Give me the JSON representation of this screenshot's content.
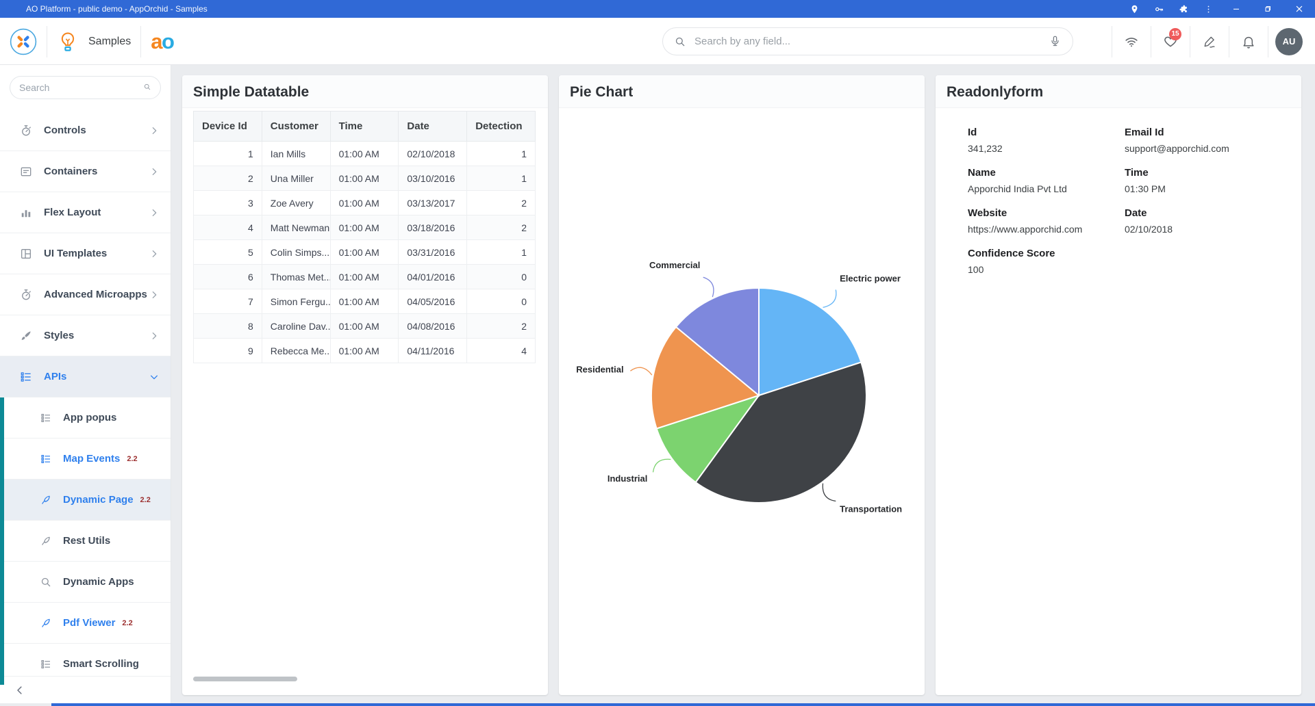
{
  "window": {
    "title": "AO Platform - public demo - AppOrchid - Samples"
  },
  "header": {
    "app_label": "Samples",
    "brand_a": "a",
    "brand_o": "o",
    "search": {
      "placeholder": "Search by any field..."
    },
    "notifications_badge": "15",
    "avatar_initials": "AU"
  },
  "sidebar": {
    "search_placeholder": "Search",
    "items": [
      {
        "label": "Controls",
        "icon": "stopwatch-icon",
        "chevron": "right"
      },
      {
        "label": "Containers",
        "icon": "card-icon",
        "chevron": "right"
      },
      {
        "label": "Flex Layout",
        "icon": "bar-chart-icon",
        "chevron": "right"
      },
      {
        "label": "UI Templates",
        "icon": "grid-icon",
        "chevron": "right"
      },
      {
        "label": "Advanced Microapps",
        "icon": "stopwatch-icon",
        "chevron": "right"
      },
      {
        "label": "Styles",
        "icon": "brush-icon",
        "chevron": "right"
      },
      {
        "label": "APIs",
        "icon": "list-icon",
        "chevron": "down",
        "active": true
      }
    ],
    "api_subitems": [
      {
        "label": "App popus",
        "icon": "list-icon"
      },
      {
        "label": "Map Events",
        "icon": "list-icon",
        "version": "2.2",
        "highlighted": true
      },
      {
        "label": "Dynamic Page",
        "icon": "quill-icon",
        "version": "2.2",
        "highlighted": true,
        "selected": true
      },
      {
        "label": "Rest Utils",
        "icon": "quill-icon"
      },
      {
        "label": "Dynamic Apps",
        "icon": "search-icon"
      },
      {
        "label": "Pdf Viewer",
        "icon": "quill-icon",
        "version": "2.2",
        "highlighted": true
      },
      {
        "label": "Smart Scrolling",
        "icon": "list-icon"
      }
    ]
  },
  "datatable": {
    "title": "Simple Datatable",
    "columns": [
      "Device Id",
      "Customer",
      "Time",
      "Date",
      "Detection"
    ],
    "rows": [
      [
        "1",
        "Ian Mills",
        "01:00 AM",
        "02/10/2018",
        "1"
      ],
      [
        "2",
        "Una Miller",
        "01:00 AM",
        "03/10/2016",
        "1"
      ],
      [
        "3",
        "Zoe Avery",
        "01:00 AM",
        "03/13/2017",
        "2"
      ],
      [
        "4",
        "Matt Newman",
        "01:00 AM",
        "03/18/2016",
        "2"
      ],
      [
        "5",
        "Colin Simps...",
        "01:00 AM",
        "03/31/2016",
        "1"
      ],
      [
        "6",
        "Thomas Met...",
        "01:00 AM",
        "04/01/2016",
        "0"
      ],
      [
        "7",
        "Simon Fergu...",
        "01:00 AM",
        "04/05/2016",
        "0"
      ],
      [
        "8",
        "Caroline Dav...",
        "01:00 AM",
        "04/08/2016",
        "2"
      ],
      [
        "9",
        "Rebecca Me...",
        "01:00 AM",
        "04/11/2016",
        "4"
      ]
    ]
  },
  "chart_data": {
    "type": "pie",
    "title": "Pie Chart",
    "labels": [
      "Electric power",
      "Transportation",
      "Industrial",
      "Residential",
      "Commercial"
    ],
    "values": [
      20,
      40,
      10,
      16,
      14
    ],
    "unit": "percent",
    "colors": [
      "#64b5f6",
      "#3f4246",
      "#7cd36f",
      "#ef944f",
      "#7e88dd"
    ],
    "start_angle_deg": 0,
    "direction": "clockwise",
    "legend": "none",
    "labels_outside": true
  },
  "form": {
    "title": "Readonlyform",
    "fields": [
      {
        "label": "Id",
        "value": "341,232",
        "col": 1
      },
      {
        "label": "Email Id",
        "value": "support@apporchid.com",
        "col": 2
      },
      {
        "label": "Name",
        "value": "Apporchid India Pvt Ltd",
        "col": 1
      },
      {
        "label": "Time",
        "value": "01:30 PM",
        "col": 2
      },
      {
        "label": "Website",
        "value": "https://www.apporchid.com",
        "col": 1
      },
      {
        "label": "Date",
        "value": "02/10/2018",
        "col": 2
      },
      {
        "label": "Confidence Score",
        "value": "100",
        "col": 1
      }
    ]
  },
  "colors": {
    "titlebar": "#3069d6",
    "accent_blue": "#2f80ed",
    "teal_strip": "#0d8a96",
    "badge_red": "#ef5b5b",
    "avatar_bg": "#5d6770"
  }
}
